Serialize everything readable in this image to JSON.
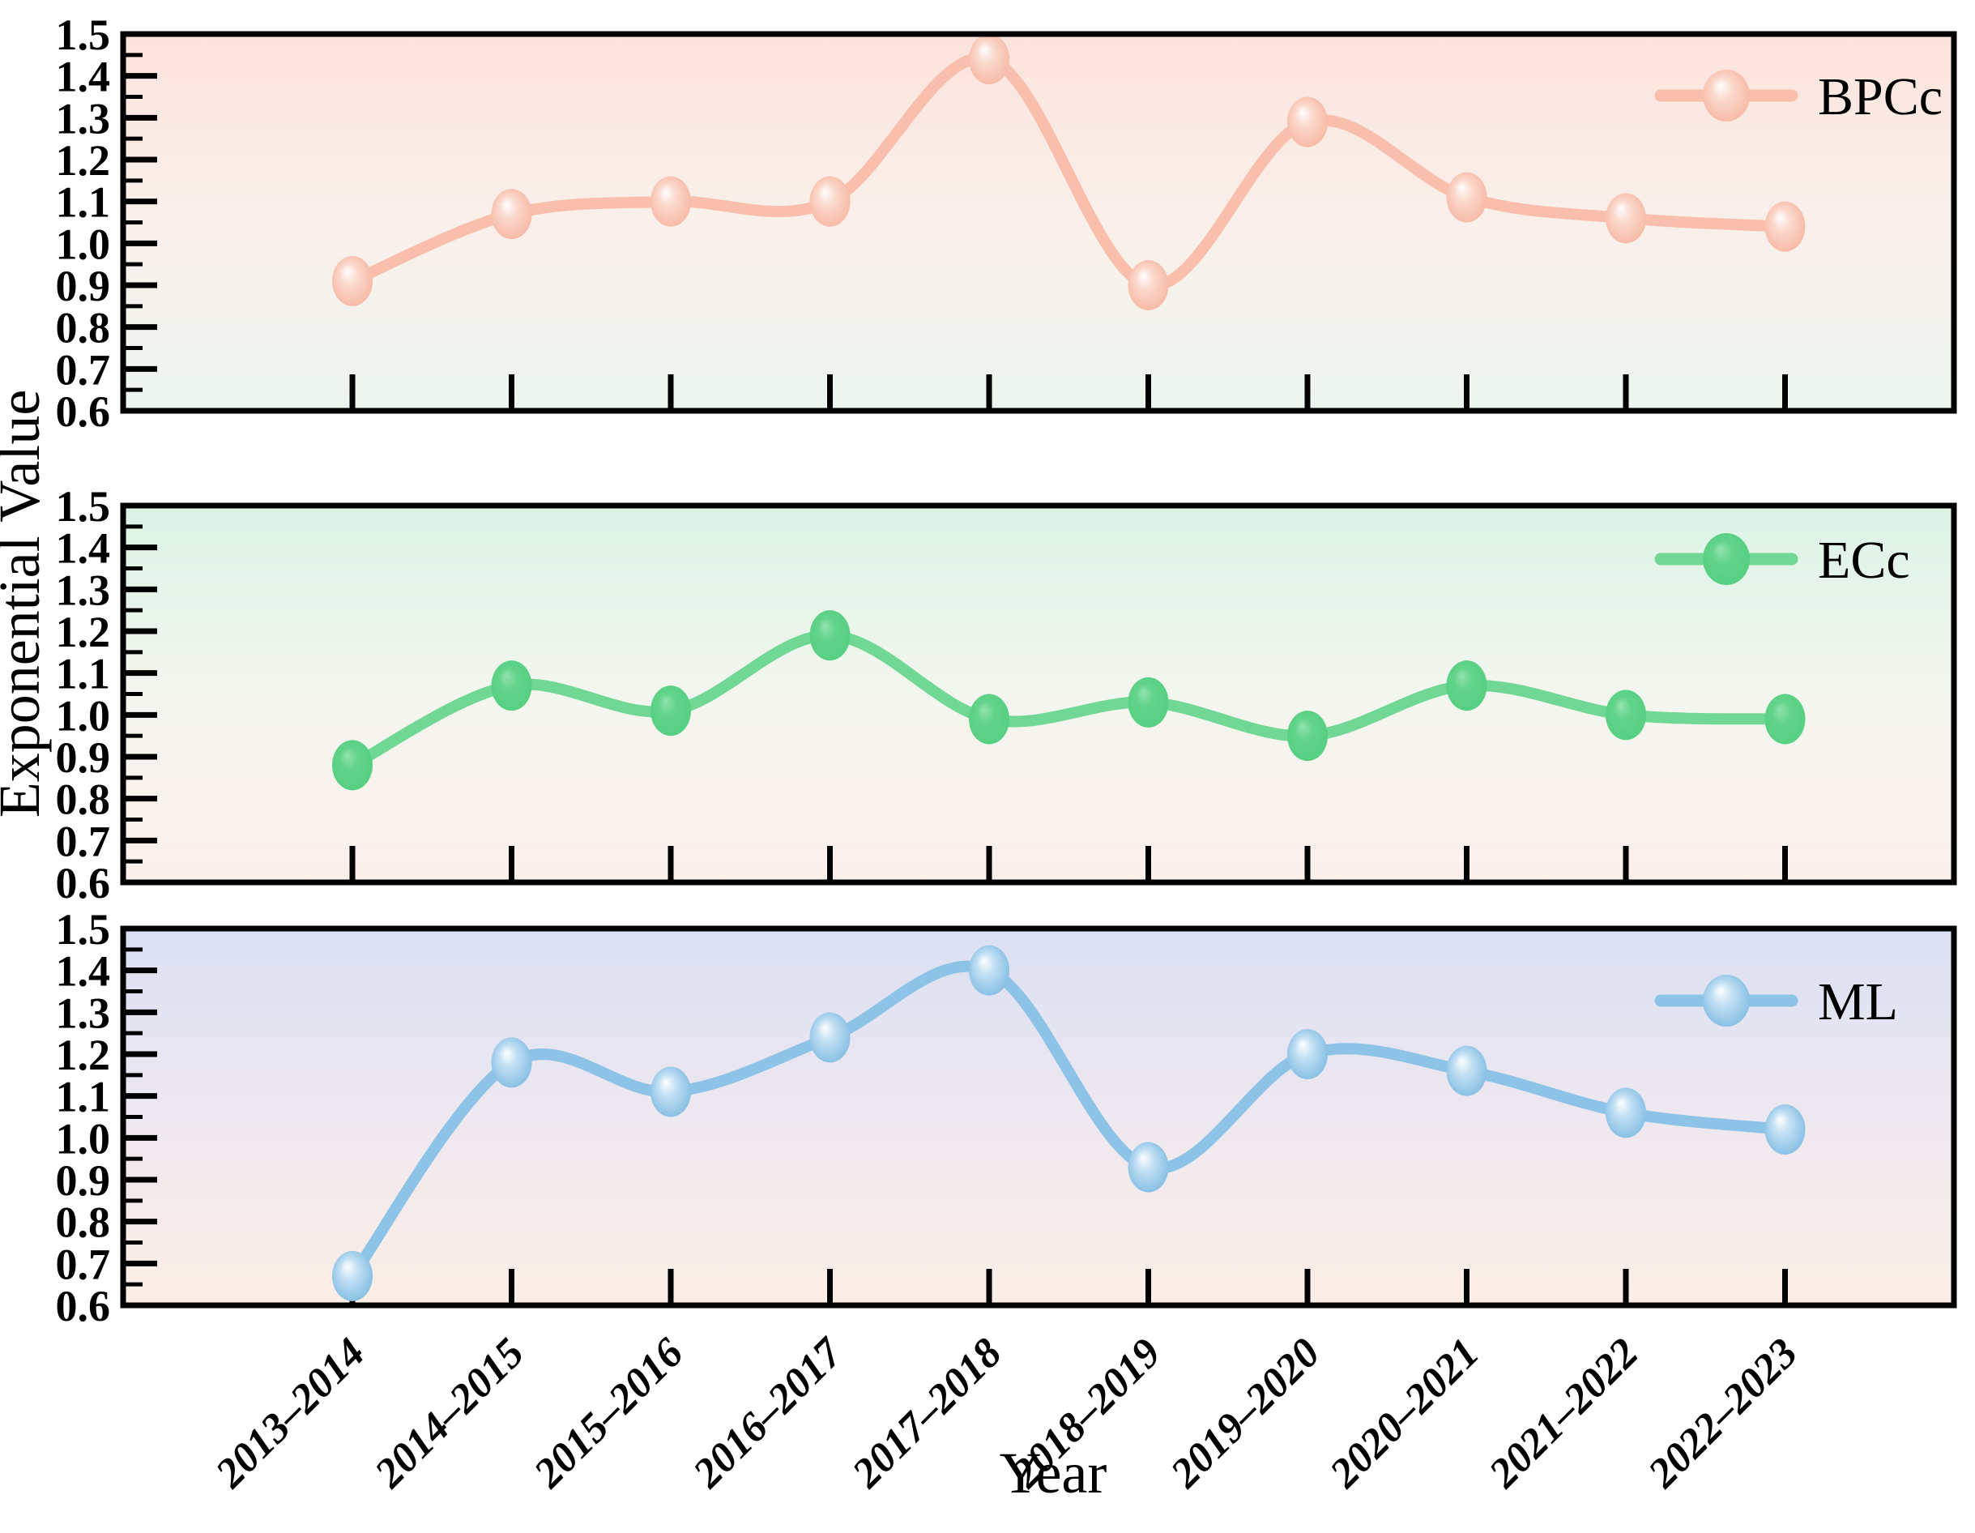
{
  "chart_data": {
    "type": "line",
    "layout_note": "three vertically stacked panels sharing the same x axis and y scale",
    "x_label": "Year",
    "y_label": "Exponential Value",
    "ylim": [
      0.6,
      1.5
    ],
    "y_tick_step": 0.1,
    "y_tick_labels": [
      "0.6",
      "0.7",
      "0.8",
      "0.9",
      "1.0",
      "1.1",
      "1.2",
      "1.3",
      "1.4",
      "1.5"
    ],
    "grid": false,
    "legend_position": "top-right-inside",
    "categories": [
      "2013–2014",
      "2014–2015",
      "2015–2016",
      "2016–2017",
      "2017–2018",
      "2018–2019",
      "2019–2020",
      "2020–2021",
      "2021–2022",
      "2022–2023"
    ],
    "series": [
      {
        "name": "BPCc",
        "panel": 1,
        "values": [
          0.91,
          1.07,
          1.1,
          1.1,
          1.44,
          0.9,
          1.29,
          1.11,
          1.06,
          1.04
        ],
        "line_color": "#F9BFAC",
        "marker_gradient": [
          "#FFFFFF",
          "#FBD9CD",
          "#F6B29C"
        ],
        "background_gradient": [
          "#FBE3DC",
          "#FAF0EB",
          "#ECF5EF"
        ]
      },
      {
        "name": "ECc",
        "panel": 2,
        "values": [
          0.88,
          1.07,
          1.01,
          1.19,
          0.99,
          1.03,
          0.95,
          1.07,
          1.0,
          0.99
        ],
        "line_color": "#70D794",
        "marker_gradient": [
          "#93E3AF",
          "#63D48B",
          "#53CE7F"
        ],
        "background_gradient": [
          "#DCF3E6",
          "#F3F6EF",
          "#FDF0EB"
        ]
      },
      {
        "name": "ML",
        "panel": 3,
        "values": [
          0.67,
          1.18,
          1.11,
          1.24,
          1.4,
          0.93,
          1.2,
          1.16,
          1.06,
          1.02
        ],
        "line_color": "#8CC3E6",
        "marker_gradient": [
          "#FFFFFF",
          "#C2E0F4",
          "#79B7E0"
        ],
        "background_gradient": [
          "#DBE0F3",
          "#EEE8F0",
          "#FCEEE5"
        ]
      }
    ],
    "axis_color": "#000000",
    "tick_direction": "in"
  }
}
